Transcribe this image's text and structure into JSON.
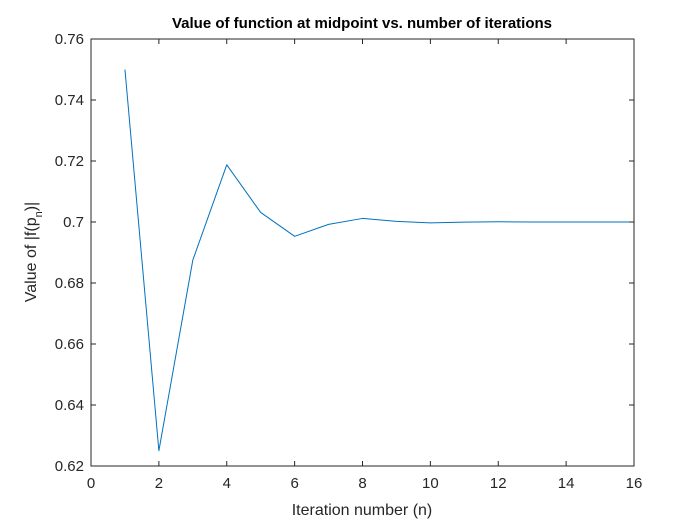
{
  "chart_data": {
    "type": "line",
    "title": "Value of function at midpoint vs. number of iterations",
    "xlabel": "Iteration number (n)",
    "ylabel": {
      "prefix": "Value of |f(p",
      "subscript": "n",
      "suffix": ")|"
    },
    "xlim": [
      0,
      16
    ],
    "ylim": [
      0.62,
      0.76
    ],
    "xticks": [
      0,
      2,
      4,
      6,
      8,
      10,
      12,
      14,
      16
    ],
    "xtick_labels": [
      "0",
      "2",
      "4",
      "6",
      "8",
      "10",
      "12",
      "14",
      "16"
    ],
    "yticks": [
      0.62,
      0.64,
      0.66,
      0.68,
      0.7,
      0.72,
      0.74,
      0.76
    ],
    "ytick_labels": [
      "0.62",
      "0.64",
      "0.66",
      "0.68",
      "0.7",
      "0.72",
      "0.74",
      "0.76"
    ],
    "grid": false,
    "series": [
      {
        "name": "|f(p_n)|",
        "color": "#0072BD",
        "x": [
          1,
          2,
          3,
          4,
          5,
          6,
          7,
          8,
          9,
          10,
          11,
          12,
          13,
          14,
          15,
          16
        ],
        "y": [
          0.75,
          0.625,
          0.6875,
          0.71875,
          0.703125,
          0.6953125,
          0.69921875,
          0.701171875,
          0.7001953125,
          0.69970703125,
          0.699951171875,
          0.7000732421875,
          0.70001220703125,
          0.69998168945313,
          0.69999694824219,
          0.70000457763672
        ]
      }
    ]
  }
}
